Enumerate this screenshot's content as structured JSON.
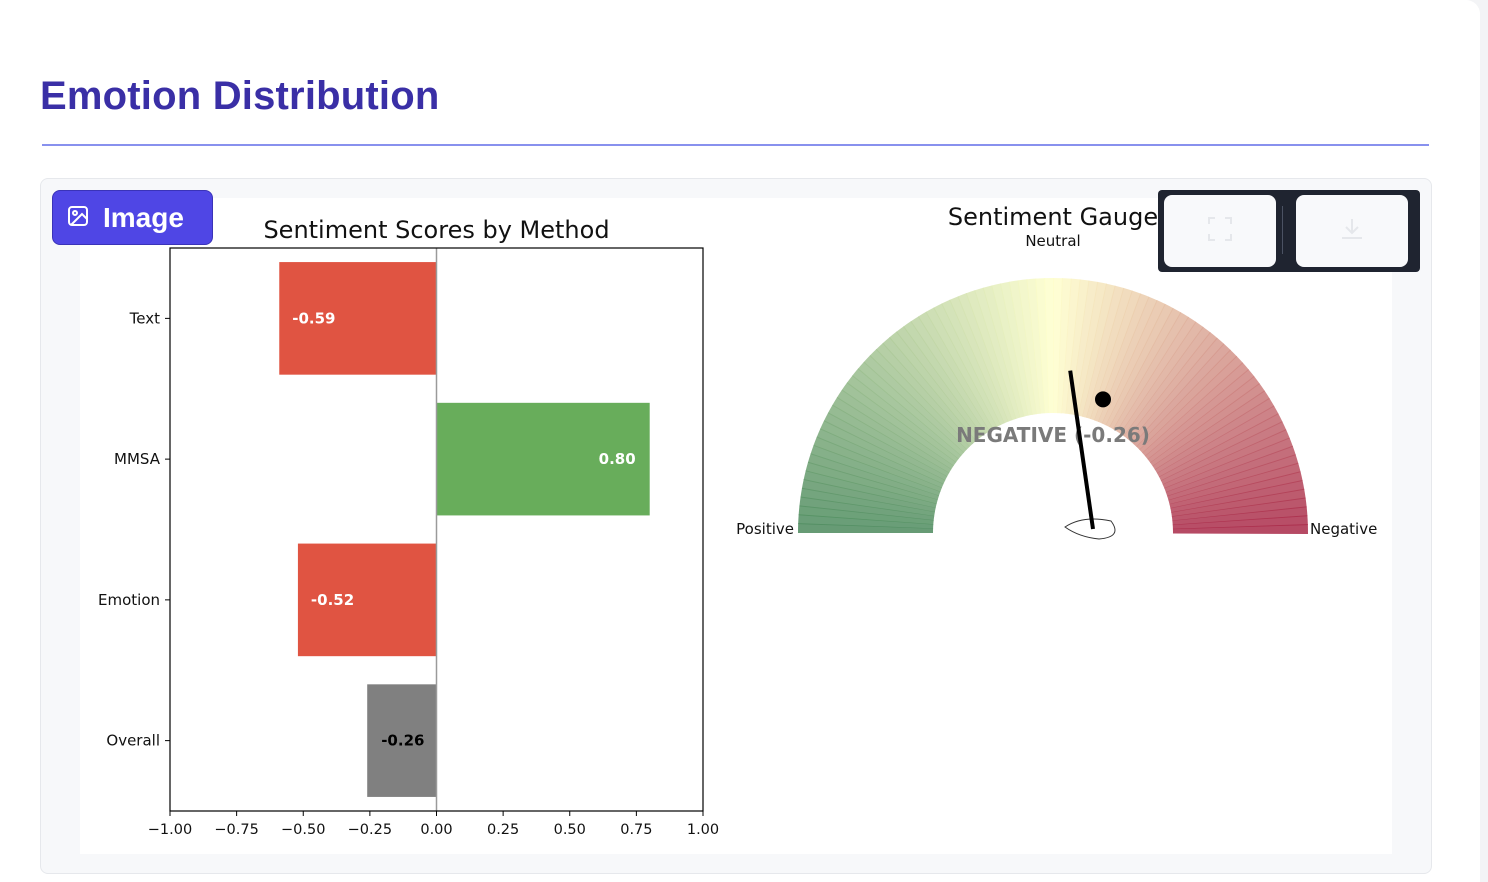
{
  "header": {
    "title": "Emotion Distribution"
  },
  "badge": {
    "label": "Image",
    "icon": "image-icon"
  },
  "toolbar": {
    "buttons": [
      "fullscreen-icon",
      "download-icon"
    ]
  },
  "colors": {
    "negative_bar": "#e05442",
    "positive_bar": "#68ad5b",
    "neutral_bar": "#808080",
    "title": "#3a2fa6",
    "accent": "#4f46e5"
  },
  "chart_data": [
    {
      "type": "bar",
      "orientation": "horizontal",
      "title": "Sentiment Scores by Method",
      "categories": [
        "Text",
        "MMSA",
        "Emotion",
        "Overall"
      ],
      "values": [
        -0.59,
        0.8,
        -0.52,
        -0.26
      ],
      "value_labels": [
        "-0.59",
        "0.80",
        "-0.52",
        "-0.26"
      ],
      "bar_colors": [
        "#e05442",
        "#68ad5b",
        "#e05442",
        "#808080"
      ],
      "xlim": [
        -1.0,
        1.0
      ],
      "xticks": [
        -1.0,
        -0.75,
        -0.5,
        -0.25,
        0.0,
        0.25,
        0.5,
        0.75,
        1.0
      ],
      "xtick_labels": [
        "−1.00",
        "−0.75",
        "−0.50",
        "−0.25",
        "0.00",
        "0.25",
        "0.50",
        "0.75",
        "1.00"
      ],
      "grid": false
    },
    {
      "type": "gauge",
      "title": "Sentiment Gauge",
      "range": [
        -1,
        1
      ],
      "value": -0.26,
      "value_text": "NEGATIVE (-0.26)",
      "labels": {
        "left": "Positive",
        "top": "Neutral",
        "right": "Negative"
      },
      "colormap": "RdYlGn (reversed)"
    }
  ]
}
